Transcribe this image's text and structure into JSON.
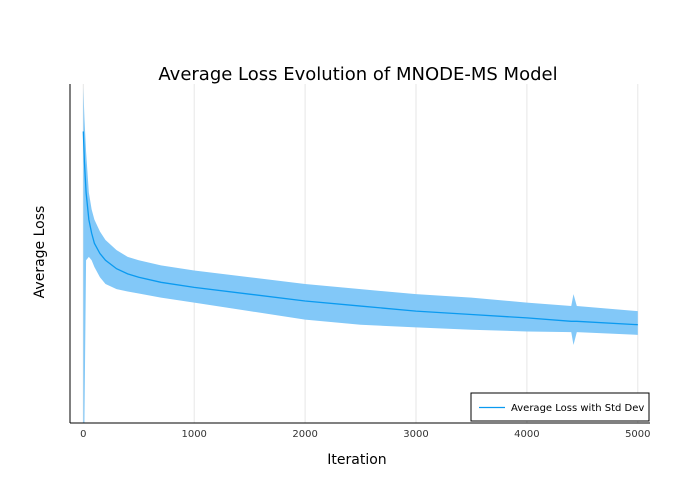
{
  "chart_data": {
    "type": "line",
    "title": "Average Loss Evolution of MNODE-MS Model",
    "xlabel": "Iteration",
    "ylabel": "Average Loss",
    "xlim": [
      -120,
      5110
    ],
    "ylim": [
      0,
      1
    ],
    "xticks": [
      0,
      1000,
      2000,
      3000,
      4000,
      5000
    ],
    "yticks_labeled": false,
    "grid": true,
    "legend_position": "bottom-right",
    "series": [
      {
        "name": "Average Loss with Std Dev",
        "color": "#0a9af0",
        "band_color": "#82c8f8",
        "x": [
          0,
          10,
          25,
          50,
          75,
          100,
          150,
          200,
          300,
          400,
          500,
          700,
          1000,
          1500,
          2000,
          2500,
          3000,
          3500,
          4000,
          4400,
          4420,
          4450,
          5000
        ],
        "mean": [
          0.86,
          0.77,
          0.68,
          0.6,
          0.56,
          0.53,
          0.5,
          0.48,
          0.455,
          0.44,
          0.43,
          0.415,
          0.4,
          0.38,
          0.36,
          0.345,
          0.33,
          0.32,
          0.31,
          0.3,
          0.3,
          0.3,
          0.29
        ],
        "upper": [
          0.99,
          0.9,
          0.8,
          0.68,
          0.63,
          0.6,
          0.565,
          0.54,
          0.51,
          0.49,
          0.48,
          0.465,
          0.45,
          0.43,
          0.41,
          0.395,
          0.38,
          0.37,
          0.355,
          0.345,
          0.38,
          0.345,
          0.33
        ],
        "lower": [
          0.0,
          0.0,
          0.48,
          0.49,
          0.48,
          0.46,
          0.43,
          0.41,
          0.395,
          0.388,
          0.382,
          0.37,
          0.355,
          0.33,
          0.305,
          0.29,
          0.282,
          0.275,
          0.27,
          0.268,
          0.23,
          0.268,
          0.26
        ]
      }
    ]
  }
}
